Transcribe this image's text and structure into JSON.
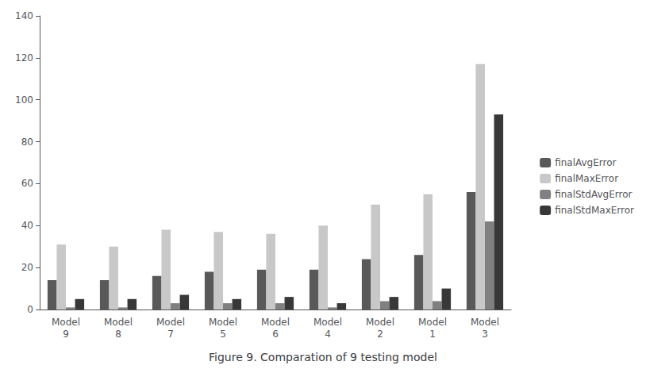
{
  "chart_data": {
    "type": "bar",
    "title": "Figure 9. Comparation of 9 testing model",
    "categories": [
      "Model\n9",
      "Model\n8",
      "Model\n7",
      "Model\n5",
      "Model\n6",
      "Model\n4",
      "Model\n2",
      "Model\n1",
      "Model\n3"
    ],
    "series": [
      {
        "name": "finalAvgError",
        "color": "#595959",
        "values": [
          14,
          14,
          16,
          18,
          19,
          19,
          24,
          26,
          56
        ]
      },
      {
        "name": "finalMaxError",
        "color": "#c8c8c8",
        "values": [
          31,
          30,
          38,
          37,
          36,
          40,
          50,
          55,
          117
        ]
      },
      {
        "name": "finalStdAvgError",
        "color": "#808080",
        "values": [
          1,
          1,
          3,
          3,
          3,
          1,
          4,
          4,
          42
        ]
      },
      {
        "name": "finalStdMaxError",
        "color": "#383838",
        "values": [
          5,
          5,
          7,
          5,
          6,
          3,
          6,
          10,
          93
        ]
      }
    ],
    "ylim": [
      0,
      140
    ],
    "yticks": [
      0,
      20,
      40,
      60,
      80,
      100,
      120,
      140
    ],
    "grid": false,
    "legend": "right"
  }
}
